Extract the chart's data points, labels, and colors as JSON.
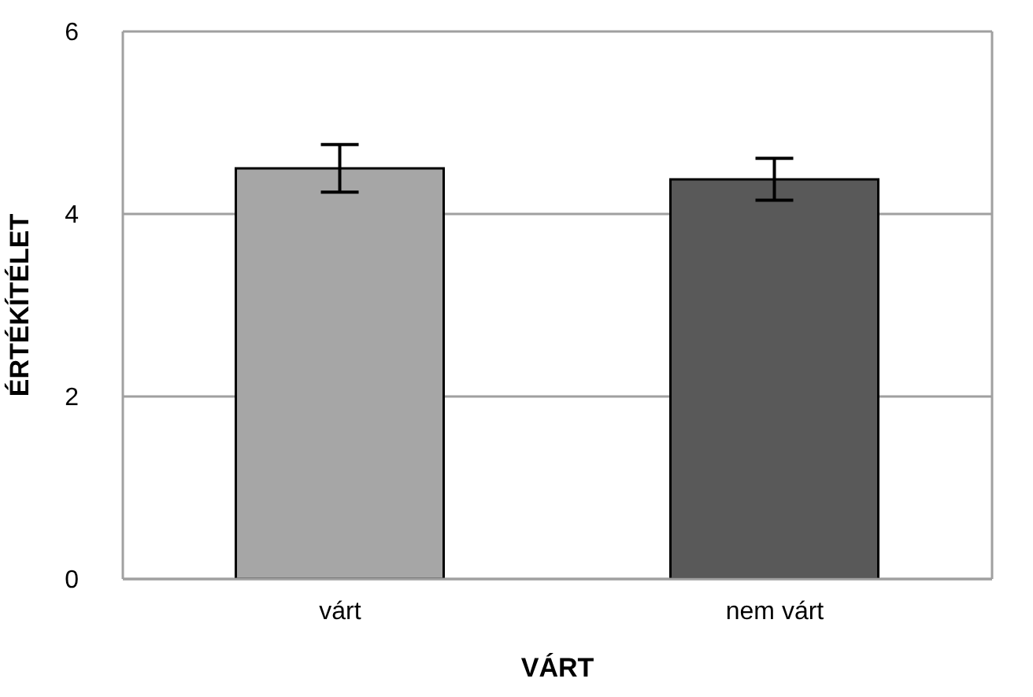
{
  "chart_data": {
    "type": "bar",
    "xlabel": "VÁRT",
    "ylabel": "ÉRTÉKÍTÉLET",
    "categories": [
      "várt",
      "nem várt"
    ],
    "values": [
      4.5,
      4.38
    ],
    "colors": [
      "#a6a6a6",
      "#595959"
    ],
    "errors": [
      0.26,
      0.23
    ],
    "ylim": [
      0,
      6
    ],
    "yticks": [
      0,
      2,
      4,
      6
    ],
    "grid": "y"
  }
}
